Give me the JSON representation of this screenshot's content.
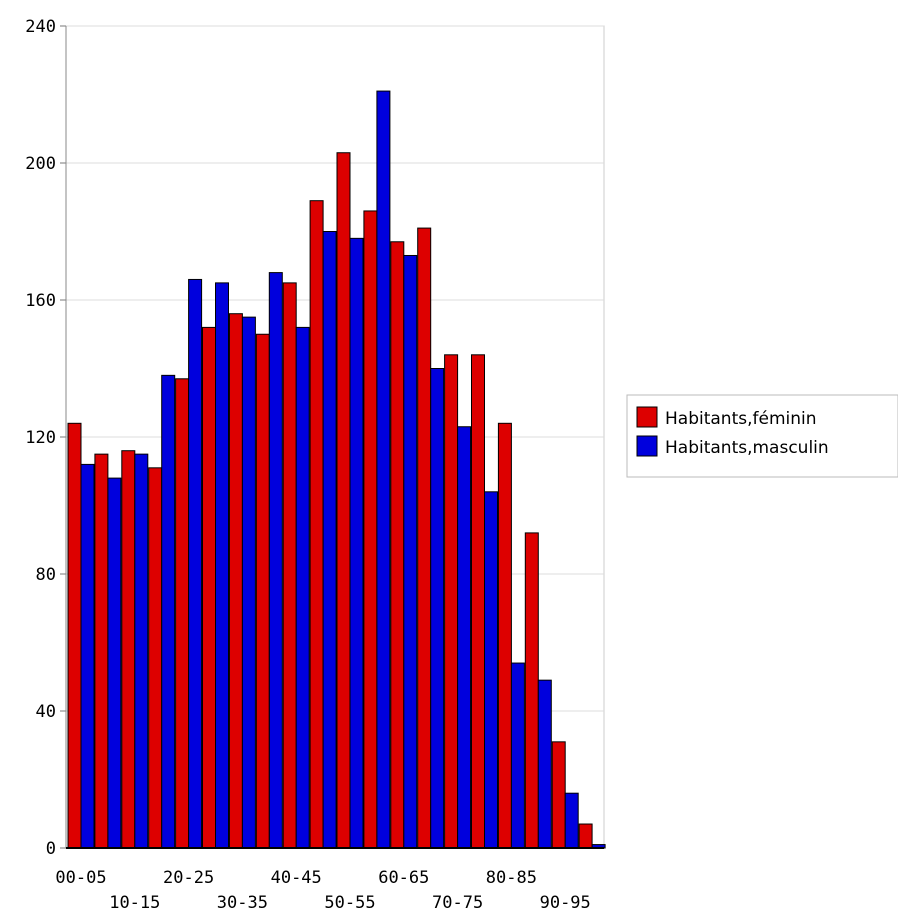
{
  "chart_data": {
    "type": "bar",
    "categories": [
      "00-05",
      "05-10",
      "10-15",
      "15-20",
      "20-25",
      "25-30",
      "30-35",
      "35-40",
      "40-45",
      "45-50",
      "50-55",
      "55-60",
      "60-65",
      "65-70",
      "70-75",
      "75-80",
      "80-85",
      "85-90",
      "90-95",
      "95-100"
    ],
    "x_tick_labels": [
      {
        "category_index": 0,
        "label": "00-05",
        "row": 0
      },
      {
        "category_index": 2,
        "label": "10-15",
        "row": 1
      },
      {
        "category_index": 4,
        "label": "20-25",
        "row": 0
      },
      {
        "category_index": 6,
        "label": "30-35",
        "row": 1
      },
      {
        "category_index": 8,
        "label": "40-45",
        "row": 0
      },
      {
        "category_index": 10,
        "label": "50-55",
        "row": 1
      },
      {
        "category_index": 12,
        "label": "60-65",
        "row": 0
      },
      {
        "category_index": 14,
        "label": "70-75",
        "row": 1
      },
      {
        "category_index": 16,
        "label": "80-85",
        "row": 0
      },
      {
        "category_index": 18,
        "label": "90-95",
        "row": 1
      }
    ],
    "series": [
      {
        "name": "Habitants,féminin",
        "color": "#dd0000",
        "values": [
          124,
          115,
          116,
          111,
          137,
          152,
          156,
          150,
          165,
          189,
          203,
          186,
          177,
          181,
          144,
          144,
          124,
          92,
          31,
          7
        ]
      },
      {
        "name": "Habitants,masculin",
        "color": "#0000dd",
        "values": [
          112,
          108,
          115,
          138,
          166,
          165,
          155,
          168,
          152,
          180,
          178,
          221,
          173,
          140,
          123,
          104,
          54,
          49,
          16,
          1
        ]
      }
    ],
    "ylim": [
      0,
      240
    ],
    "yticks": [
      0,
      40,
      80,
      120,
      160,
      200,
      240
    ],
    "grid": true,
    "legend_position": "right",
    "title": "",
    "xlabel": "",
    "ylabel": ""
  }
}
